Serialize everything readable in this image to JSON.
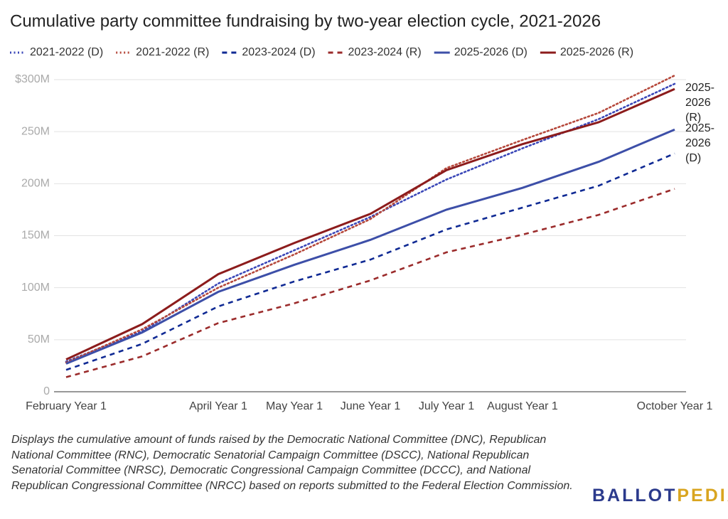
{
  "chart_data": {
    "type": "line",
    "title": "Cumulative party committee fundraising by two-year election cycle, 2021-2026",
    "categories": [
      "February Year 1",
      null,
      "April Year 1",
      "May Year 1",
      "June Year 1",
      "July Year 1",
      "August Year 1",
      null,
      "October Year 1"
    ],
    "series": [
      {
        "name": "2021-2022 (D)",
        "color": "#3a47b8",
        "style": "dotted",
        "values": [
          29,
          58,
          104,
          136,
          168,
          204,
          234,
          262,
          296
        ]
      },
      {
        "name": "2021-2022 (R)",
        "color": "#b5473a",
        "style": "dotted",
        "values": [
          28,
          60,
          100,
          132,
          166,
          215,
          242,
          268,
          304
        ]
      },
      {
        "name": "2023-2024 (D)",
        "color": "#102a94",
        "style": "dashed",
        "values": [
          21,
          46,
          82,
          106,
          127,
          156,
          177,
          198,
          229
        ]
      },
      {
        "name": "2023-2024 (R)",
        "color": "#9b2b2b",
        "style": "dashed",
        "values": [
          14,
          34,
          66,
          85,
          107,
          134,
          151,
          170,
          195
        ]
      },
      {
        "name": "2025-2026 (D)",
        "color": "#3d4fa8",
        "style": "solid",
        "values": [
          27,
          57,
          96,
          122,
          146,
          175,
          196,
          221,
          252
        ]
      },
      {
        "name": "2025-2026 (R)",
        "color": "#8c1c1c",
        "style": "solid",
        "values": [
          31,
          65,
          113,
          143,
          171,
          213,
          238,
          259,
          291
        ]
      }
    ],
    "annotations": [
      {
        "text": "2025-2026 (R)",
        "series": 5
      },
      {
        "text": "2025-2026 (D)",
        "series": 4
      }
    ],
    "ylim": [
      0,
      300
    ],
    "yticks": [
      0,
      {
        "value": 50,
        "label": "50M"
      },
      {
        "value": 100,
        "label": "100M"
      },
      {
        "value": 150,
        "label": "150M"
      },
      {
        "value": 200,
        "label": "200M"
      },
      {
        "value": 250,
        "label": "250M"
      },
      {
        "value": 300,
        "label": "$300M"
      }
    ],
    "grid": true,
    "note": "Displays the cumulative amount of funds raised by the Democratic National Committee (DNC), Republican National Committee (RNC), Democratic Senatorial Campaign Committee (DSCC), National Republican Senatorial Committee (NRSC), Democratic Congressional Campaign Committee (DCCC), and National Republican Congressional Committee (NRCC) based on reports submitted to the Federal Election Commission.",
    "logo": [
      "BALLOT",
      "PEDIA"
    ]
  }
}
